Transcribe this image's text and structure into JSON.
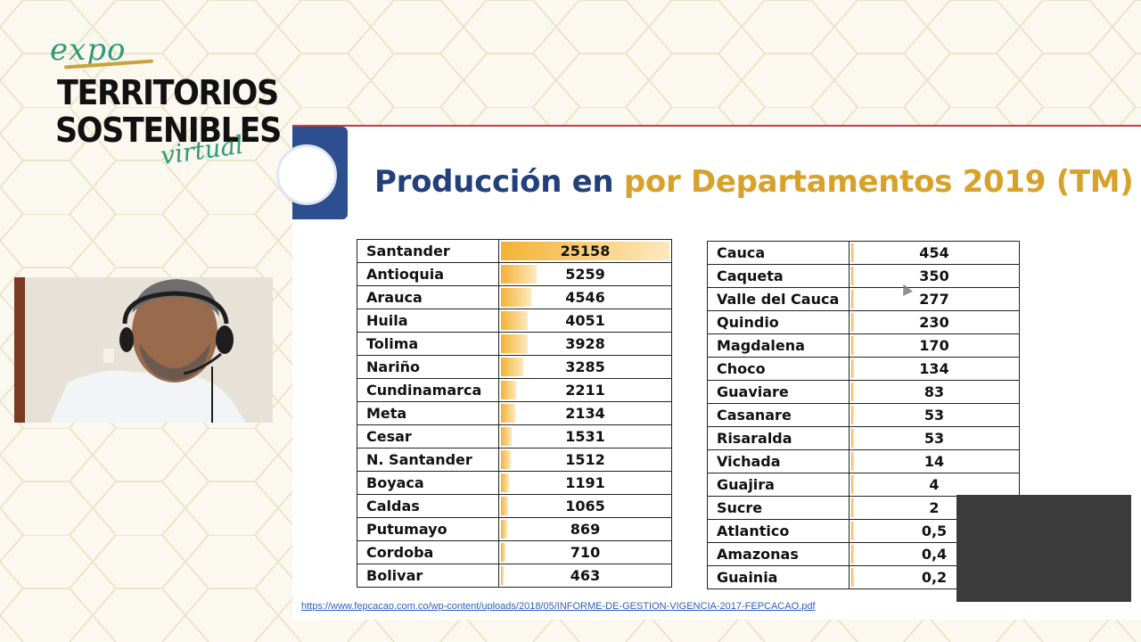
{
  "logo": {
    "expo": "expo",
    "line1": "TERRITORIOS",
    "line2": "SOSTENIBLES",
    "virtual": "virtual"
  },
  "slide": {
    "title_part1": "Producción en ",
    "title_part2": "por Departamentos 2019 (TM)",
    "source_url": "https://www.fepcacao.com.co/wp-content/uploads/2018/05/INFORME-DE-GESTION-VIGENCIA-2017-FEPCACAO.pdf"
  },
  "colors": {
    "title_blue": "#23407a",
    "title_gold": "#d7a12a",
    "bar_orange": "#f4b234"
  },
  "table_left": [
    {
      "name": "Santander",
      "value": "25158",
      "num": 25158
    },
    {
      "name": "Antioquia",
      "value": "5259",
      "num": 5259
    },
    {
      "name": "Arauca",
      "value": "4546",
      "num": 4546
    },
    {
      "name": "Huila",
      "value": "4051",
      "num": 4051
    },
    {
      "name": "Tolima",
      "value": "3928",
      "num": 3928
    },
    {
      "name": "Nariño",
      "value": "3285",
      "num": 3285
    },
    {
      "name": "Cundinamarca",
      "value": "2211",
      "num": 2211
    },
    {
      "name": "Meta",
      "value": "2134",
      "num": 2134
    },
    {
      "name": "Cesar",
      "value": "1531",
      "num": 1531
    },
    {
      "name": "N. Santander",
      "value": "1512",
      "num": 1512
    },
    {
      "name": "Boyaca",
      "value": "1191",
      "num": 1191
    },
    {
      "name": "Caldas",
      "value": "1065",
      "num": 1065
    },
    {
      "name": "Putumayo",
      "value": "869",
      "num": 869
    },
    {
      "name": "Cordoba",
      "value": "710",
      "num": 710
    },
    {
      "name": "Bolivar",
      "value": "463",
      "num": 463
    }
  ],
  "table_right": [
    {
      "name": "Cauca",
      "value": "454",
      "num": 454
    },
    {
      "name": "Caqueta",
      "value": "350",
      "num": 350
    },
    {
      "name": "Valle del Cauca",
      "value": "277",
      "num": 277
    },
    {
      "name": "Quindio",
      "value": "230",
      "num": 230
    },
    {
      "name": "Magdalena",
      "value": "170",
      "num": 170
    },
    {
      "name": "Choco",
      "value": "134",
      "num": 134
    },
    {
      "name": "Guaviare",
      "value": "83",
      "num": 83
    },
    {
      "name": "Casanare",
      "value": "53",
      "num": 53
    },
    {
      "name": "Risaralda",
      "value": "53",
      "num": 53
    },
    {
      "name": "Vichada",
      "value": "14",
      "num": 14
    },
    {
      "name": "Guajira",
      "value": "4",
      "num": 4
    },
    {
      "name": "Sucre",
      "value": "2",
      "num": 2
    },
    {
      "name": "Atlantico",
      "value": "0,5",
      "num": 0.5
    },
    {
      "name": "Amazonas",
      "value": "0,4",
      "num": 0.4
    },
    {
      "name": "Guainia",
      "value": "0,2",
      "num": 0.2
    }
  ]
}
